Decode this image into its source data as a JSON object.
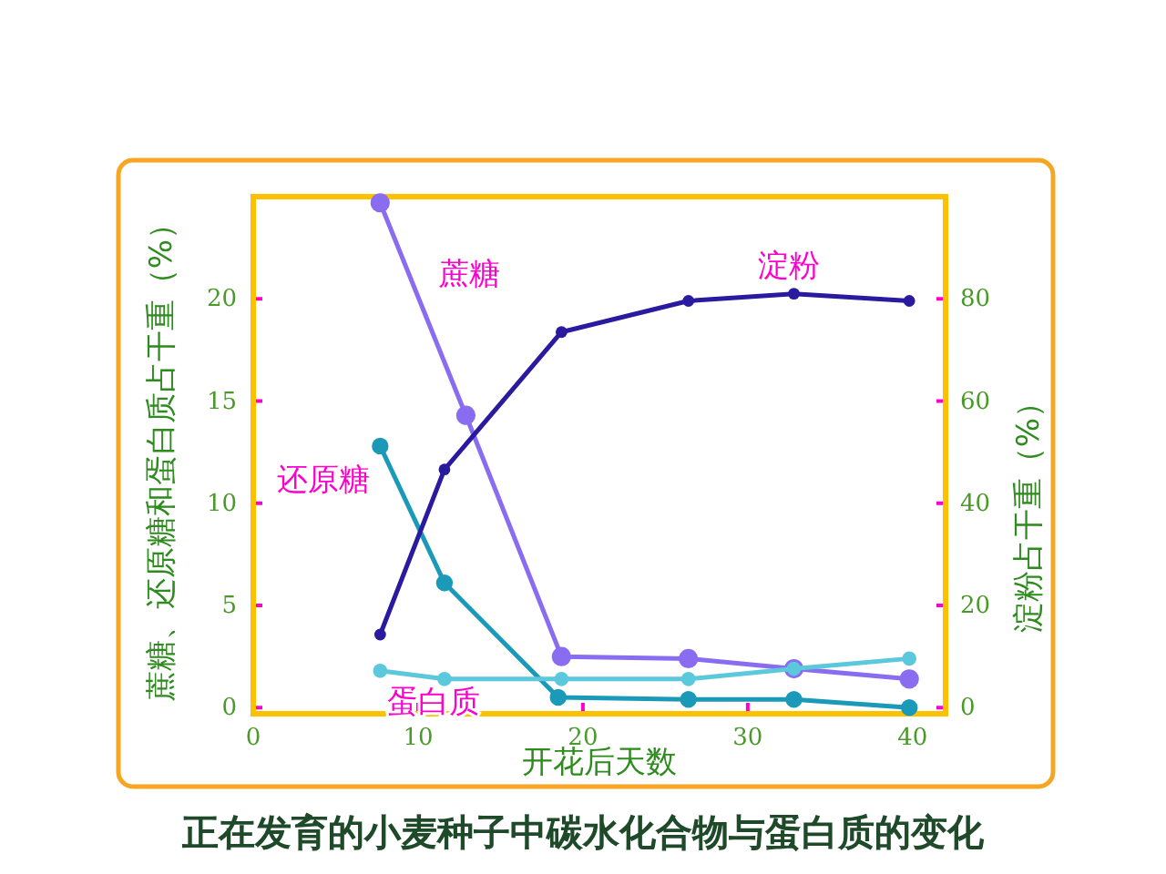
{
  "chart_data": {
    "type": "line",
    "title": "正在发育的小麦种子中碳水化合物与蛋白质的变化",
    "xlabel": "开花后天数",
    "ylabel": "蔗糖、还原糖和蛋白质占干重（%）",
    "y2label": "淀粉占干重（%）",
    "xlim": [
      0,
      42
    ],
    "xticks": [
      0,
      10,
      20,
      30,
      40
    ],
    "ylim": [
      -0.3,
      25
    ],
    "yticks": [
      0,
      5,
      10,
      15,
      20
    ],
    "y2lim": [
      -1.2,
      100
    ],
    "y2ticks": [
      0,
      20,
      40,
      60,
      80
    ],
    "marker": "circle",
    "grid": false,
    "series": [
      {
        "name": "蔗糖",
        "color": "#8a6cf0",
        "x": [
          7.7,
          12.9,
          18.7,
          26.4,
          32.8,
          39.8
        ],
        "values": [
          24.7,
          14.3,
          2.5,
          2.4,
          1.9,
          1.4
        ]
      },
      {
        "name": "还原糖",
        "color": "#1a9ab8",
        "x": [
          7.7,
          11.6,
          18.5,
          26.4,
          32.8,
          39.8
        ],
        "values": [
          12.8,
          6.1,
          0.5,
          0.4,
          0.4,
          0
        ]
      },
      {
        "name": "蛋白质",
        "color": "#5cc8dc",
        "x": [
          7.7,
          11.6,
          18.7,
          26.4,
          32.8,
          39.8
        ],
        "values": [
          1.8,
          1.4,
          1.4,
          1.4,
          1.9,
          2.4
        ]
      },
      {
        "name": "淀粉",
        "color": "#2a1aa0",
        "axis": "y2",
        "x": [
          7.7,
          11.6,
          18.7,
          26.4,
          32.8,
          39.8
        ],
        "values": [
          14.3,
          46.6,
          73.5,
          79.6,
          81,
          79.6
        ]
      }
    ]
  }
}
